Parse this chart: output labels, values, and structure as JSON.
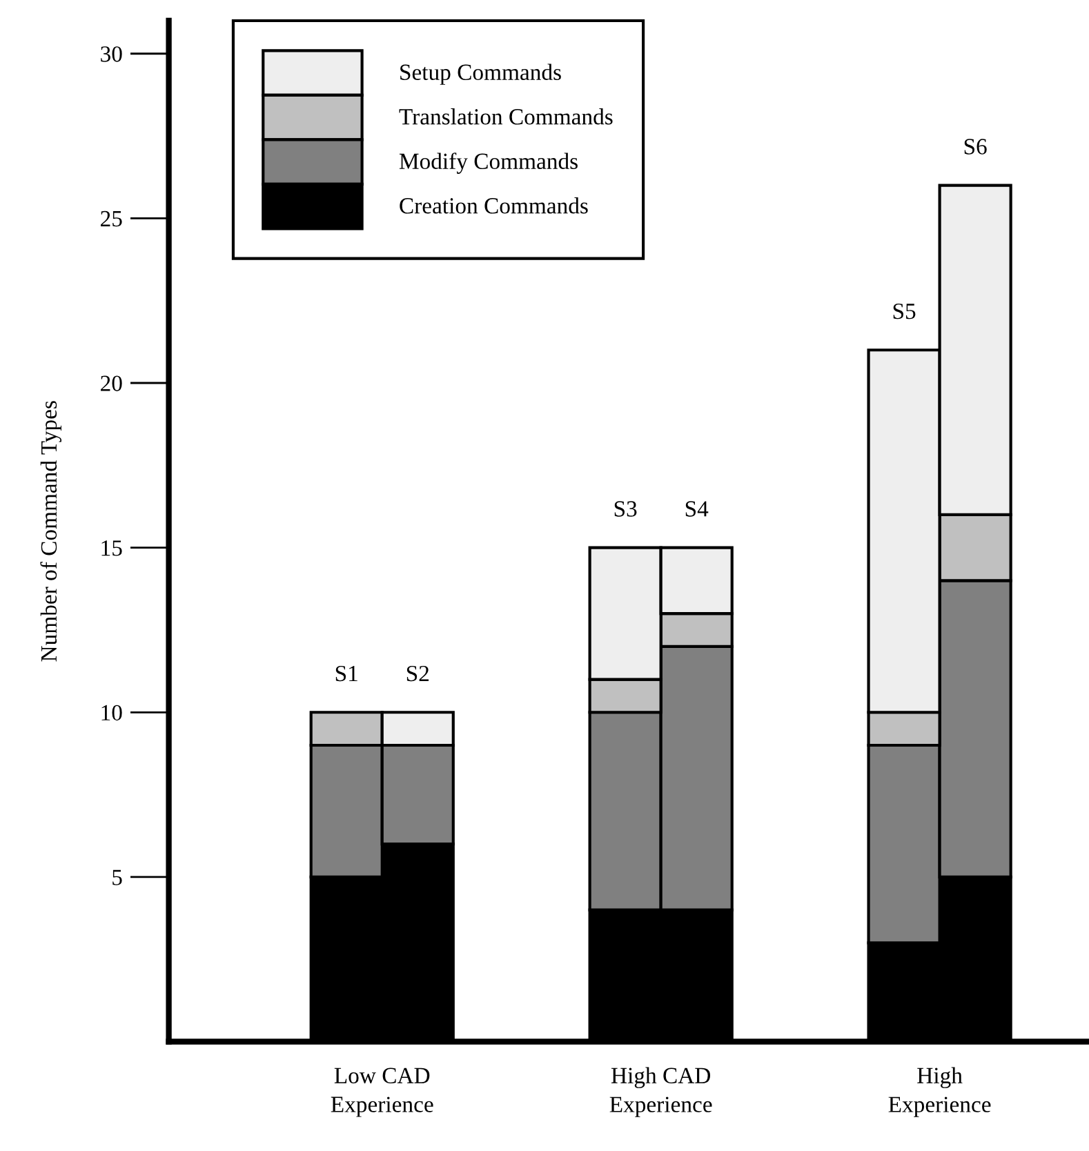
{
  "chart_data": {
    "type": "bar",
    "stacked": true,
    "ylabel": "Number of Command Types",
    "categories": [
      null,
      null,
      null,
      null,
      null,
      null
    ],
    "series": [
      {
        "name": "Creation Commands",
        "color": "#000000",
        "values": [
          5,
          6,
          4,
          4,
          3,
          5
        ]
      },
      {
        "name": "Modify Commands",
        "color": "#808080",
        "values": [
          4,
          3,
          6,
          8,
          6,
          9
        ]
      },
      {
        "name": "Translation Commands",
        "color": "#c0c0c0",
        "values": [
          1,
          0,
          1,
          1,
          1,
          2
        ]
      },
      {
        "name": "Setup Commands",
        "color": "#eeeeee",
        "values": [
          0,
          1,
          4,
          2,
          11,
          10
        ]
      }
    ],
    "annotations": [
      "S1",
      "S2",
      "S3",
      "S4",
      "S5",
      "S6",
      "Low CAD\nExperience",
      "High CAD\nExperience",
      "High\nExperience"
    ],
    "ylim": [
      0,
      31
    ],
    "yticks": [
      5,
      10,
      15,
      20,
      25,
      30
    ],
    "grid": false,
    "legend": "top left",
    "tick_labels": "y"
  }
}
